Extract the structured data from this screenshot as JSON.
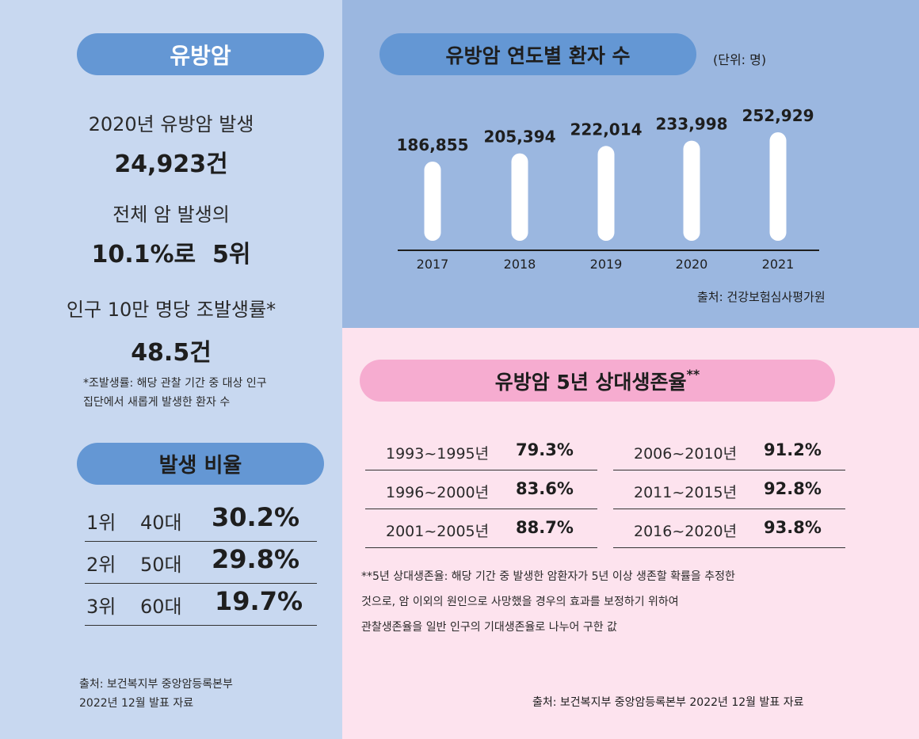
{
  "left": {
    "title": "유방암",
    "stats": [
      {
        "label": "2020년 유방암 발생",
        "value": "24,923건"
      },
      {
        "label": "전체 암 발생의",
        "value": "10.1%로  5위"
      },
      {
        "label": "인구 10만 명당 조발생률*",
        "value": "48.5건"
      }
    ],
    "note_lines": [
      "*조발생률: 해당 관찰 기간 중 대상 인구",
      "집단에서 새롭게 발생한 환자 수"
    ],
    "ratio_title": "발생 비율",
    "ranks": [
      {
        "rank": "1위",
        "age": "40대",
        "pct": "30.2%"
      },
      {
        "rank": "2위",
        "age": "50대",
        "pct": "29.8%"
      },
      {
        "rank": "3위",
        "age": "60대",
        "pct": "19.7%"
      }
    ],
    "source_lines": [
      "출처: 보건복지부 중앙암등록본부",
      "2022년 12월 발표 자료"
    ]
  },
  "chart_panel": {
    "title": "유방암 연도별 환자 수",
    "unit": "(단위: 명)",
    "source": "출처: 건강보험심사평가원"
  },
  "chart_data": {
    "type": "bar",
    "title": "유방암 연도별 환자 수",
    "unit": "(단위: 명)",
    "categories": [
      "2017",
      "2018",
      "2019",
      "2020",
      "2021"
    ],
    "values": [
      186855,
      205394,
      222014,
      233998,
      252929
    ],
    "value_labels": [
      "186,855",
      "205,394",
      "222,014",
      "233,998",
      "252,929"
    ],
    "colors": {
      "bar": "#ffffff",
      "background": "#9bb7e0"
    }
  },
  "survival": {
    "title": "유방암 5년 상대생존율",
    "title_mark": "**",
    "left": [
      {
        "period": "1993~1995년",
        "rate": "79.3%"
      },
      {
        "period": "1996~2000년",
        "rate": "83.6%"
      },
      {
        "period": "2001~2005년",
        "rate": "88.7%"
      }
    ],
    "right": [
      {
        "period": "2006~2010년",
        "rate": "91.2%"
      },
      {
        "period": "2011~2015년",
        "rate": "92.8%"
      },
      {
        "period": "2016~2020년",
        "rate": "93.8%"
      }
    ],
    "note_lines": [
      "**5년 상대생존율: 해당 기간 중 발생한 암환자가 5년 이상 생존할 확률을 추정한",
      "것으로, 암 이외의 원인으로 사망했을 경우의 효과를 보정하기 위하여",
      "관찰생존율을 일반 인구의 기대생존율로 나누어 구한 값"
    ],
    "source": "출처: 보건복지부 중앙암등록본부 2022년 12월 발표 자료"
  },
  "colors": {
    "left_bg": "#c8d8f0",
    "chart_bg": "#9bb7e0",
    "pink_bg": "#fde3ee",
    "pill_blue": "#6497d4",
    "pill_pink": "#f6acd0"
  }
}
